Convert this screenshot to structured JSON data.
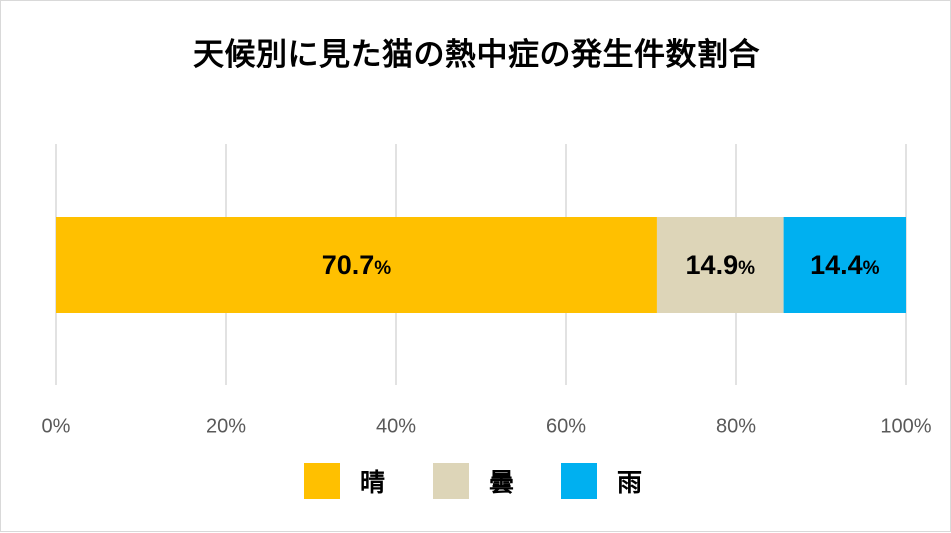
{
  "chart_data": {
    "type": "bar",
    "orientation": "horizontal-stacked-100",
    "title": "天候別に見た猫の熱中症の発生件数割合",
    "xlim": [
      0,
      100
    ],
    "x_ticks": [
      "0%",
      "20%",
      "40%",
      "60%",
      "80%",
      "100%"
    ],
    "grid": true,
    "legend_position": "bottom",
    "series": [
      {
        "name": "晴",
        "value": 70.7,
        "label": "70.7",
        "unit": "%",
        "color": "#FFC000"
      },
      {
        "name": "曇",
        "value": 14.9,
        "label": "14.9",
        "unit": "%",
        "color": "#DDD5B8"
      },
      {
        "name": "雨",
        "value": 14.4,
        "label": "14.4",
        "unit": "%",
        "color": "#00B0F0"
      }
    ]
  }
}
